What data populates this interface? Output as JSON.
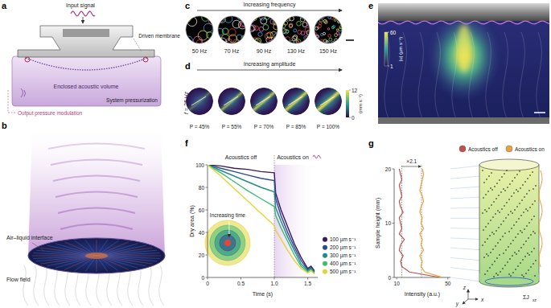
{
  "figure": {
    "panels": {
      "a": {
        "label": "a",
        "input_signal": "Input signal",
        "driven_membrane": "Driven membrane",
        "enclosed_volume": "Enclosed acoustic volume",
        "pressurization": "System pressurization",
        "output": "Output pressure modulation"
      },
      "b": {
        "label": "b",
        "interface": "Air–liquid interface",
        "flow_field": "Flow field"
      },
      "c": {
        "label": "c",
        "title": "Increasing frequency",
        "frequencies": [
          "50 Hz",
          "70 Hz",
          "90 Hz",
          "130 Hz",
          "150 Hz"
        ]
      },
      "d": {
        "label": "d",
        "title": "Increasing amplitude",
        "frequency": "f = 25 Hz",
        "amplitudes": [
          "P = 45%",
          "P = 55%",
          "P = 70%",
          "P = 85%",
          "P = 100%"
        ],
        "colorbar": {
          "range": [
            0,
            12
          ],
          "ticks": [
            0,
            12
          ],
          "label": "(mm s⁻¹)"
        }
      },
      "e": {
        "label": "e",
        "colorbar": {
          "range": [
            1,
            60
          ],
          "ticks": [
            1,
            60
          ],
          "label": "|u| (µm s⁻¹)"
        }
      },
      "f": {
        "label": "f",
        "inset_label": "Increasing time"
      },
      "g": {
        "label": "g",
        "axis_names": [
          "z",
          "y",
          "x"
        ],
        "flux_symbol": "ΣJ",
        "flux_subscript": "xz"
      }
    }
  },
  "chart_data": [
    {
      "type": "line",
      "x_label": "Time (s)",
      "y_label": "Dry area (%)",
      "x": [
        0,
        0.2,
        0.4,
        0.6,
        0.8,
        1,
        1.02,
        1.1,
        1.2,
        1.3,
        1.4,
        1.5,
        1.55,
        1.6
      ],
      "series": [
        {
          "name": "100 µm s⁻¹",
          "color": "#3b1a5c",
          "values": [
            100,
            99,
            97,
            96,
            94,
            93,
            75,
            60,
            45,
            30,
            18,
            8,
            10,
            6
          ]
        },
        {
          "name": "200 µm s⁻¹",
          "color": "#2c4a8c",
          "values": [
            100,
            97,
            94,
            91,
            88,
            86,
            70,
            55,
            40,
            27,
            15,
            7,
            9,
            5
          ]
        },
        {
          "name": "300 µm s⁻¹",
          "color": "#238a8d",
          "values": [
            100,
            95,
            90,
            85,
            80,
            76,
            62,
            50,
            36,
            24,
            12,
            6,
            8,
            4
          ]
        },
        {
          "name": "400 µm s⁻¹",
          "color": "#3fbc73",
          "values": [
            100,
            93,
            85,
            77,
            70,
            63,
            55,
            44,
            32,
            20,
            10,
            5,
            7,
            4
          ]
        },
        {
          "name": "500 µm s⁻¹",
          "color": "#e3d43a",
          "values": [
            100,
            90,
            79,
            68,
            57,
            46,
            42,
            34,
            24,
            15,
            8,
            4,
            6,
            3
          ]
        }
      ],
      "xlim": [
        0,
        1.65
      ],
      "ylim": [
        0,
        100
      ],
      "xticks": [
        0,
        0.5,
        {
          "value": 1,
          "label": "1.0"
        },
        1.5
      ],
      "yticks": [
        0,
        20,
        40,
        60,
        80,
        100
      ],
      "legend": "right",
      "annotations": [
        "Acoustics off",
        "Acoustics on"
      ],
      "switch_time": 1
    },
    {
      "type": "line",
      "x_label": "Intensity (a.u.)",
      "y_label": "Sample height (mm)",
      "series": [
        {
          "name": "Acoustics off",
          "color": "#c0504d",
          "x": [
            44,
            20,
            14,
            13,
            15,
            12,
            13,
            16,
            12,
            14,
            13,
            12,
            15,
            13,
            12,
            14,
            13,
            12,
            14,
            13,
            12
          ],
          "values": [
            0,
            1,
            2,
            3,
            4,
            5,
            6,
            7,
            8,
            9,
            10,
            11,
            12,
            13,
            14,
            15,
            16,
            17,
            18,
            19,
            20
          ]
        },
        {
          "name": "Acoustics on",
          "color": "#e8a33c",
          "x": [
            46,
            32,
            29,
            30,
            28,
            31,
            29,
            30,
            28,
            31,
            29,
            30,
            28,
            29,
            31,
            30,
            28,
            29,
            30,
            31,
            30
          ],
          "values": [
            0,
            1,
            2,
            3,
            4,
            5,
            6,
            7,
            8,
            9,
            10,
            11,
            12,
            13,
            14,
            15,
            16,
            17,
            18,
            19,
            20
          ]
        }
      ],
      "xlim": [
        8,
        52
      ],
      "ylim": [
        0,
        20
      ],
      "xticks": [
        10,
        50
      ],
      "yticks": [
        0,
        10,
        20
      ],
      "legend": "top",
      "mean_levels": [
        14,
        29.4
      ],
      "ratio_label": "×2.1"
    }
  ]
}
